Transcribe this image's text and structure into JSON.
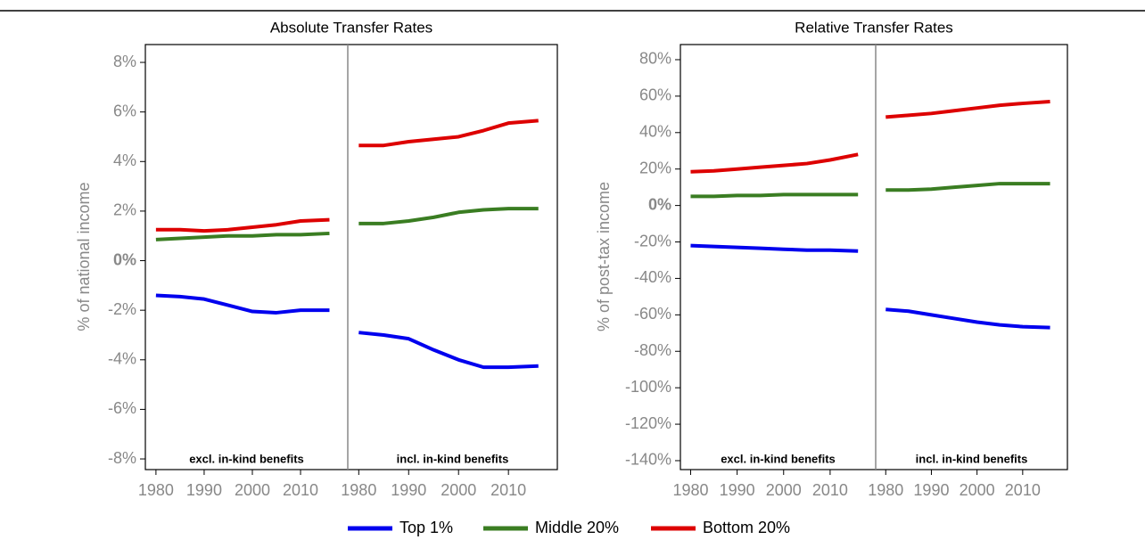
{
  "chart_data": [
    {
      "type": "line",
      "title": "Absolute Transfer Rates",
      "ylabel": "% of national income",
      "ylim": [
        -8.43,
        8.72
      ],
      "yticks": [
        {
          "value": -8,
          "label": "-8%"
        },
        {
          "value": -6,
          "label": "-6%"
        },
        {
          "value": -4,
          "label": "-4%"
        },
        {
          "value": -2,
          "label": "-2%"
        },
        {
          "value": 0,
          "label": "0%"
        },
        {
          "value": 2,
          "label": "2%"
        },
        {
          "value": 4,
          "label": "4%"
        },
        {
          "value": 6,
          "label": "6%"
        },
        {
          "value": 8,
          "label": "8%"
        }
      ],
      "xlim": [
        1977.8,
        2019.8
      ],
      "xticks": [
        1980,
        1990,
        2000,
        2010
      ],
      "panels": [
        {
          "annotation": "excl. in-kind benefits",
          "x": [
            1980,
            1985,
            1990,
            1995,
            2000,
            2005,
            2010,
            2016
          ],
          "series": [
            {
              "color": "#0000ee",
              "values": [
                -1.4,
                -1.45,
                -1.55,
                -1.8,
                -2.05,
                -2.1,
                -2.0,
                -2.0
              ]
            },
            {
              "color": "#3a7d22",
              "values": [
                0.85,
                0.9,
                0.95,
                1.0,
                1.0,
                1.05,
                1.05,
                1.1
              ]
            },
            {
              "color": "#dd0000",
              "values": [
                1.25,
                1.25,
                1.2,
                1.25,
                1.35,
                1.45,
                1.6,
                1.65
              ]
            }
          ]
        },
        {
          "annotation": "incl. in-kind benefits",
          "x": [
            1980,
            1985,
            1990,
            1995,
            2000,
            2005,
            2010,
            2016
          ],
          "series": [
            {
              "color": "#0000ee",
              "values": [
                -2.9,
                -3.0,
                -3.15,
                -3.6,
                -4.0,
                -4.3,
                -4.3,
                -4.25
              ]
            },
            {
              "color": "#3a7d22",
              "values": [
                1.5,
                1.5,
                1.6,
                1.75,
                1.95,
                2.05,
                2.1,
                2.1
              ]
            },
            {
              "color": "#dd0000",
              "values": [
                4.65,
                4.65,
                4.8,
                4.9,
                5.0,
                5.25,
                5.55,
                5.65
              ]
            }
          ]
        }
      ]
    },
    {
      "type": "line",
      "title": "Relative Transfer Rates",
      "ylabel": "% of post-tax income",
      "ylim": [
        -144.9,
        88.3
      ],
      "yticks": [
        {
          "value": -140,
          "label": "-140%"
        },
        {
          "value": -120,
          "label": "-120%"
        },
        {
          "value": -100,
          "label": "-100%"
        },
        {
          "value": -80,
          "label": "-80%"
        },
        {
          "value": -60,
          "label": "-60%"
        },
        {
          "value": -40,
          "label": "-40%"
        },
        {
          "value": -20,
          "label": "-20%"
        },
        {
          "value": 0,
          "label": "0%"
        },
        {
          "value": 20,
          "label": "20%"
        },
        {
          "value": 40,
          "label": "40%"
        },
        {
          "value": 60,
          "label": "60%"
        },
        {
          "value": 80,
          "label": "80%"
        }
      ],
      "xlim": [
        1977.8,
        2019.8
      ],
      "xticks": [
        1980,
        1990,
        2000,
        2010
      ],
      "panels": [
        {
          "annotation": "excl. in-kind benefits",
          "x": [
            1980,
            1985,
            1990,
            1995,
            2000,
            2005,
            2010,
            2016
          ],
          "series": [
            {
              "color": "#0000ee",
              "values": [
                -22,
                -22.5,
                -23,
                -23.5,
                -24,
                -24.5,
                -24.5,
                -25
              ]
            },
            {
              "color": "#3a7d22",
              "values": [
                5,
                5,
                5.5,
                5.5,
                6,
                6,
                6,
                6
              ]
            },
            {
              "color": "#dd0000",
              "values": [
                18.5,
                19,
                20,
                21,
                22,
                23,
                25,
                28
              ]
            }
          ]
        },
        {
          "annotation": "incl. in-kind benefits",
          "x": [
            1980,
            1985,
            1990,
            1995,
            2000,
            2005,
            2010,
            2016
          ],
          "series": [
            {
              "color": "#0000ee",
              "values": [
                -57,
                -58,
                -60,
                -62,
                -64,
                -65.5,
                -66.5,
                -67
              ]
            },
            {
              "color": "#3a7d22",
              "values": [
                8.5,
                8.5,
                9,
                10,
                11,
                12,
                12,
                12
              ]
            },
            {
              "color": "#dd0000",
              "values": [
                48.5,
                49.5,
                50.5,
                52,
                53.5,
                55,
                56,
                57
              ]
            }
          ]
        }
      ]
    }
  ],
  "legend": [
    {
      "name": "Top 1%",
      "color": "#0000ee"
    },
    {
      "name": "Middle 20%",
      "color": "#3a7d22"
    },
    {
      "name": "Bottom 20%",
      "color": "#dd0000"
    }
  ]
}
